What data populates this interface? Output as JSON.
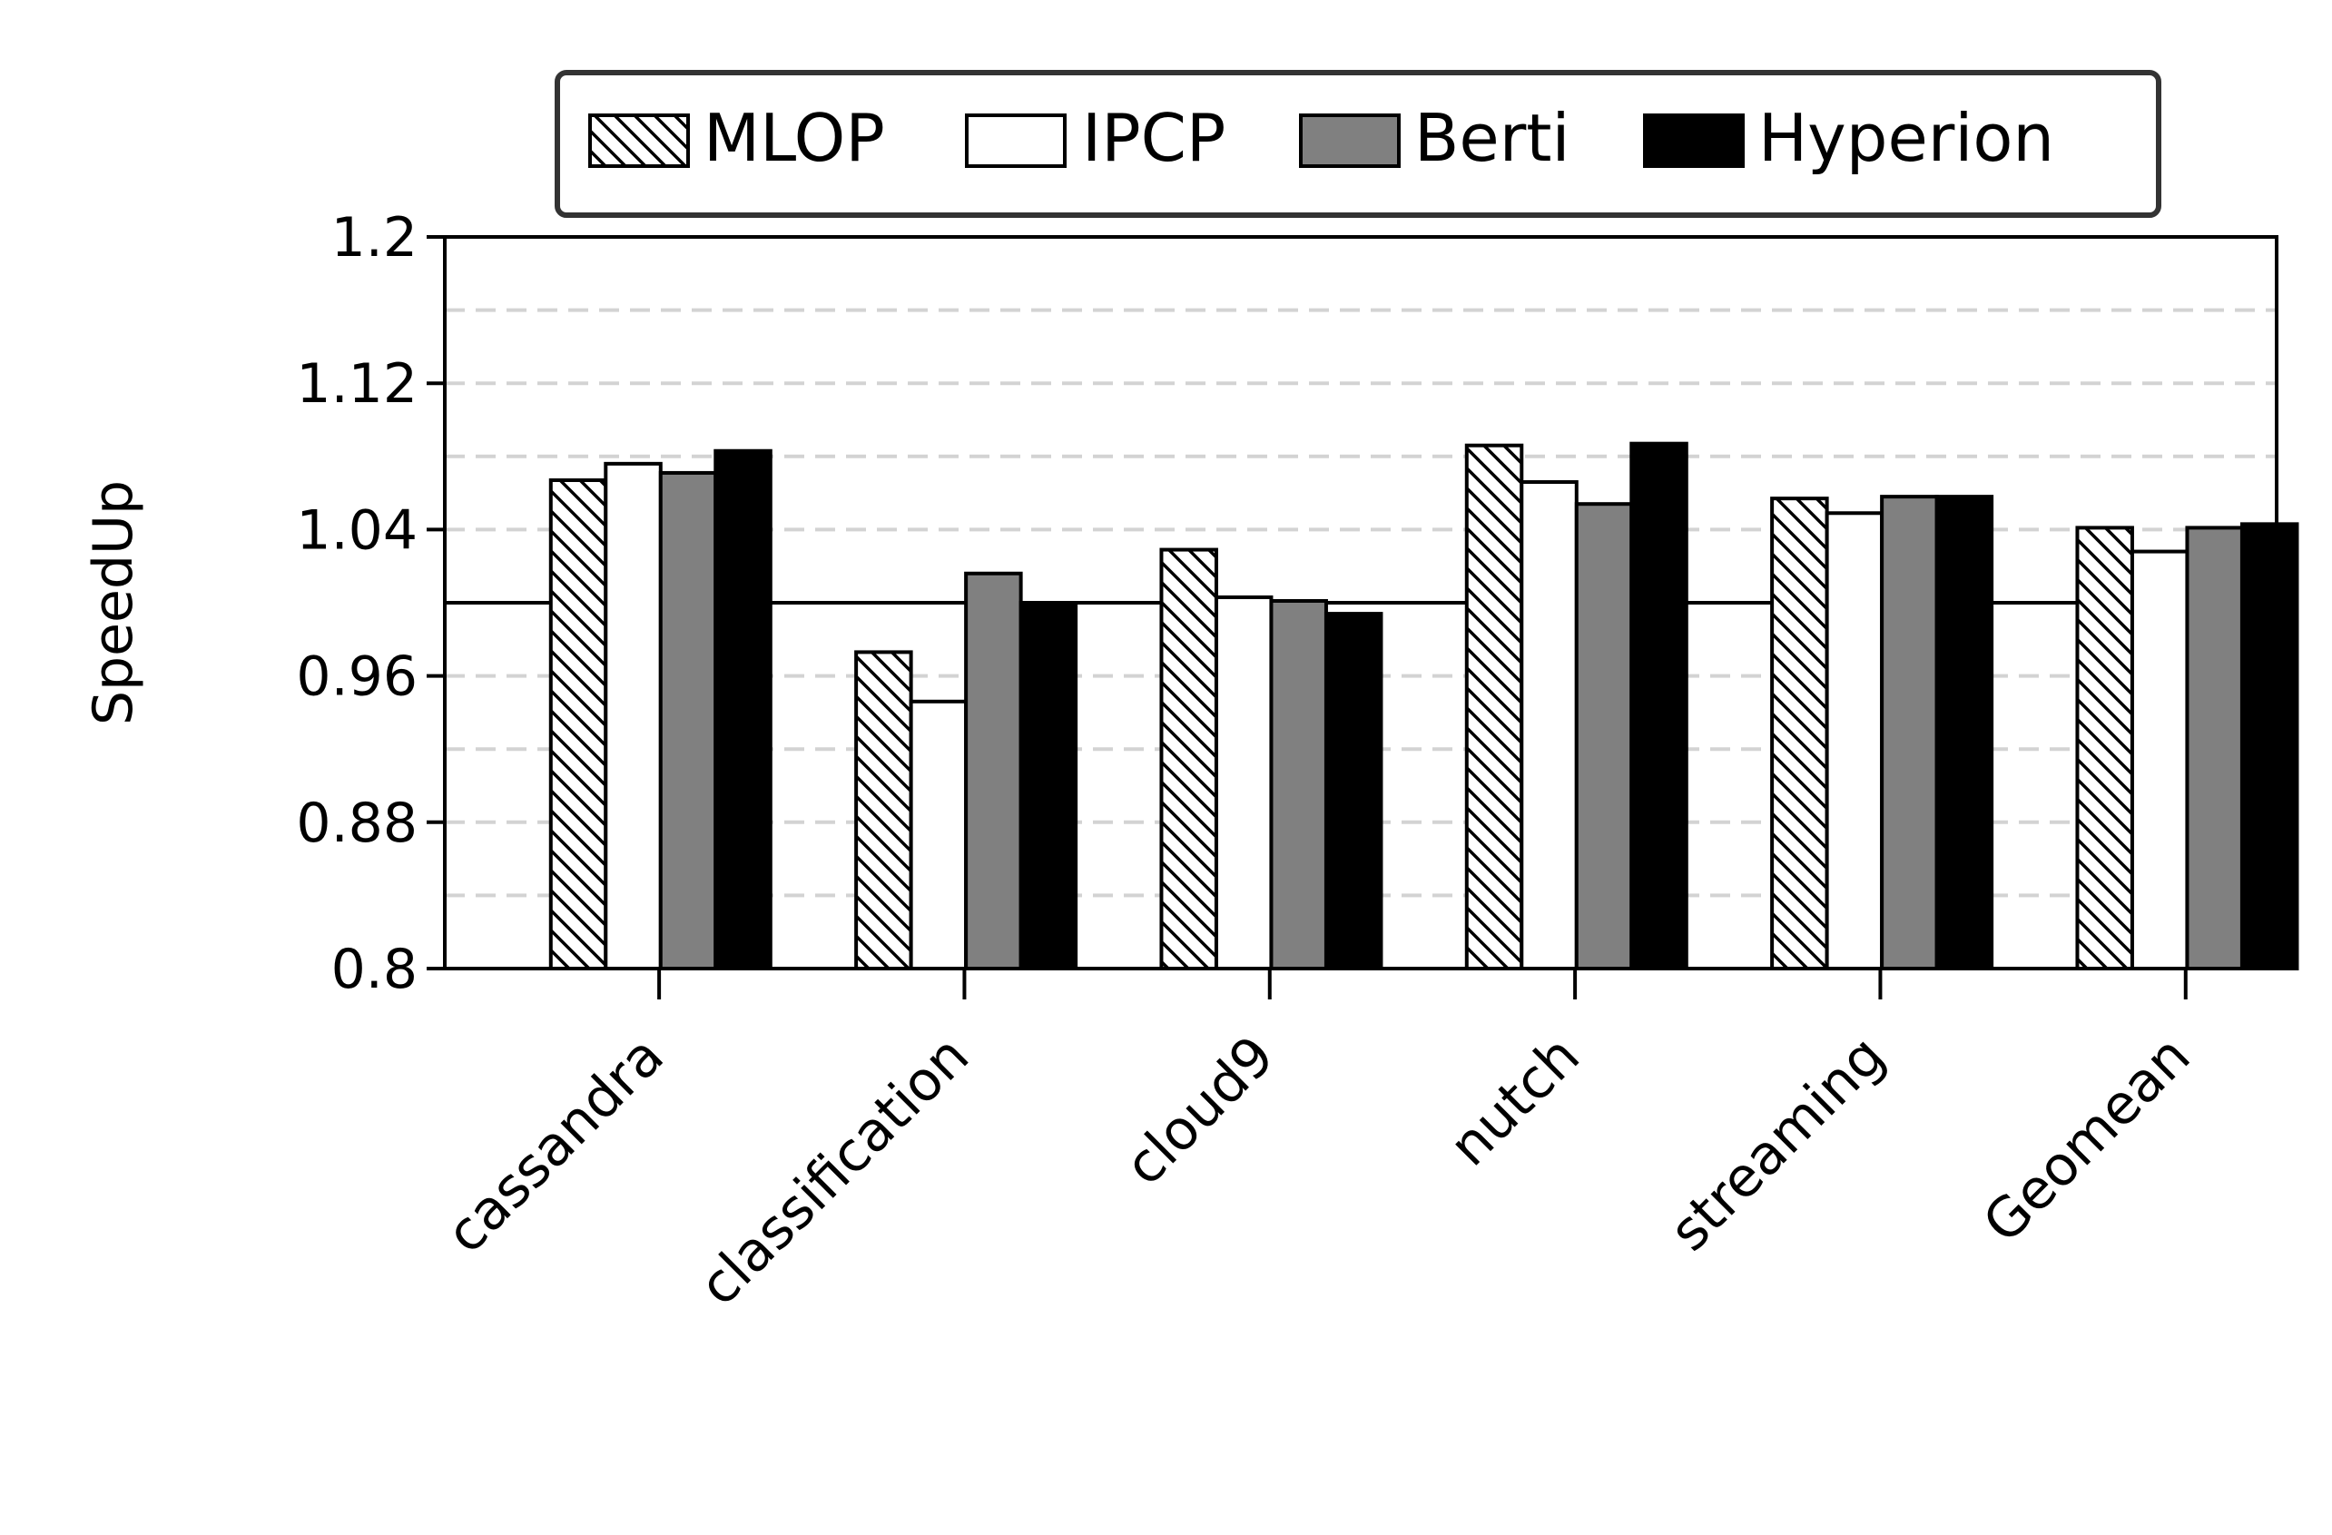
{
  "chart_data": {
    "type": "bar",
    "title": "",
    "xlabel": "",
    "ylabel": "SpeedUp",
    "ylim": [
      0.8,
      1.2
    ],
    "yticks": [
      "0.8",
      "0.88",
      "0.96",
      "1.04",
      "1.12",
      "1.2"
    ],
    "ytick_values": [
      0.8,
      0.88,
      0.96,
      1.04,
      1.12,
      1.2
    ],
    "minor_gridlines": [
      0.84,
      0.92,
      1.08,
      1.16
    ],
    "grid": "horizontal dashed",
    "baseline": 1.0,
    "legend_position": "top",
    "categories": [
      "cassandra",
      "classification",
      "cloud9",
      "nutch",
      "streaming",
      "Geomean"
    ],
    "series": [
      {
        "name": "MLOP",
        "style": "hatch",
        "color": "#ffffff",
        "values": [
          1.067,
          0.973,
          1.029,
          1.086,
          1.057,
          1.041
        ]
      },
      {
        "name": "IPCP",
        "style": "solid",
        "color": "#ffffff",
        "values": [
          1.076,
          0.946,
          1.003,
          1.066,
          1.049,
          1.028
        ]
      },
      {
        "name": "Berti",
        "style": "solid",
        "color": "#808080",
        "values": [
          1.071,
          1.016,
          1.001,
          1.054,
          1.058,
          1.041
        ]
      },
      {
        "name": "Hyperion",
        "style": "solid",
        "color": "#000000",
        "values": [
          1.083,
          1.0,
          0.994,
          1.087,
          1.058,
          1.043
        ]
      }
    ]
  }
}
